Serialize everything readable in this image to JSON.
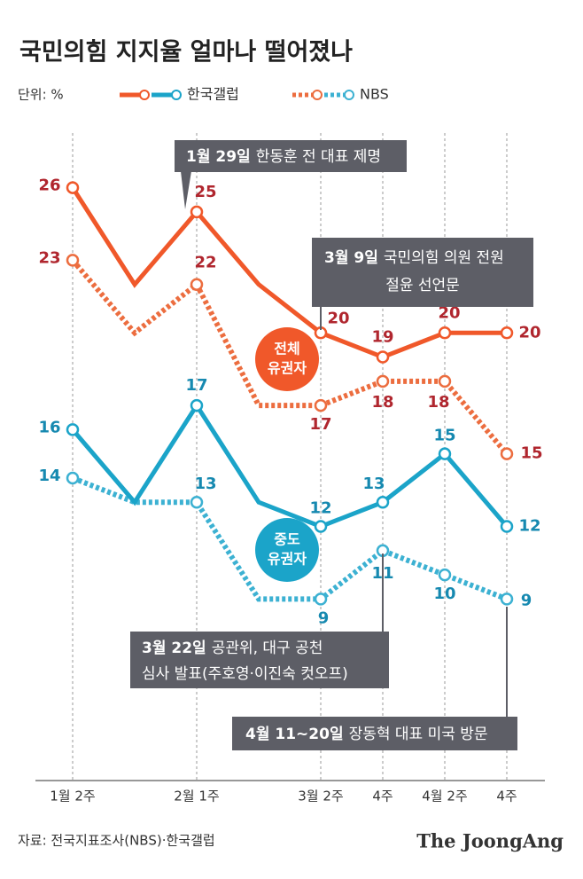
{
  "chart_data": {
    "type": "line",
    "title": "국민의힘 지지율 얼마나 떨어졌나",
    "unit": "단위: %",
    "categories": [
      "1월 2주",
      null,
      "2월 1주",
      null,
      "3월 2주",
      "4주",
      "4월 2주",
      "4주"
    ],
    "ylim": [
      1.5,
      28
    ],
    "series": [
      {
        "name": "한국갤럽",
        "group": 0,
        "style": "solid",
        "color": "#f0582a",
        "label_color": "#b0262e",
        "values": [
          26,
          22,
          25,
          22,
          20,
          19,
          20,
          20
        ]
      },
      {
        "name": "NBS",
        "group": 0,
        "style": "dotted",
        "color": "#ec6d3f",
        "label_color": "#b0262e",
        "values": [
          23,
          20,
          22,
          17,
          17,
          18,
          18,
          15
        ]
      },
      {
        "name": "한국갤럽",
        "group": 1,
        "style": "solid",
        "color": "#1ba4c9",
        "label_color": "#1689b0",
        "values": [
          16,
          13,
          17,
          13,
          12,
          13,
          15,
          12
        ]
      },
      {
        "name": "NBS",
        "group": 1,
        "style": "dotted",
        "color": "#3cb1d2",
        "label_color": "#1689b0",
        "values": [
          14,
          13,
          13,
          9,
          9,
          11,
          10,
          9
        ]
      }
    ],
    "groups": [
      {
        "lines": [
          "전체",
          "유권자"
        ],
        "color": "#f0582a"
      },
      {
        "lines": [
          "중도",
          "유권자"
        ],
        "color": "#1ba4c9"
      }
    ],
    "annotations": [
      {
        "bold": "1월 29일",
        "lines": [
          "한동훈 전 대표 제명"
        ]
      },
      {
        "bold": "3월 9일",
        "lines": [
          "국민의힘 의원 전원",
          "절윤 선언문"
        ]
      },
      {
        "bold": "3월 22일",
        "lines": [
          "공관위, 대구 공천",
          "심사 발표(주호영·이진숙 컷오프)"
        ]
      },
      {
        "bold": "4월 11~20일",
        "lines": [
          "장동혁 대표 미국 방문"
        ]
      }
    ],
    "source": "자료: 전국지표조사(NBS)·한국갤럽",
    "brand": "The JoongAng"
  }
}
